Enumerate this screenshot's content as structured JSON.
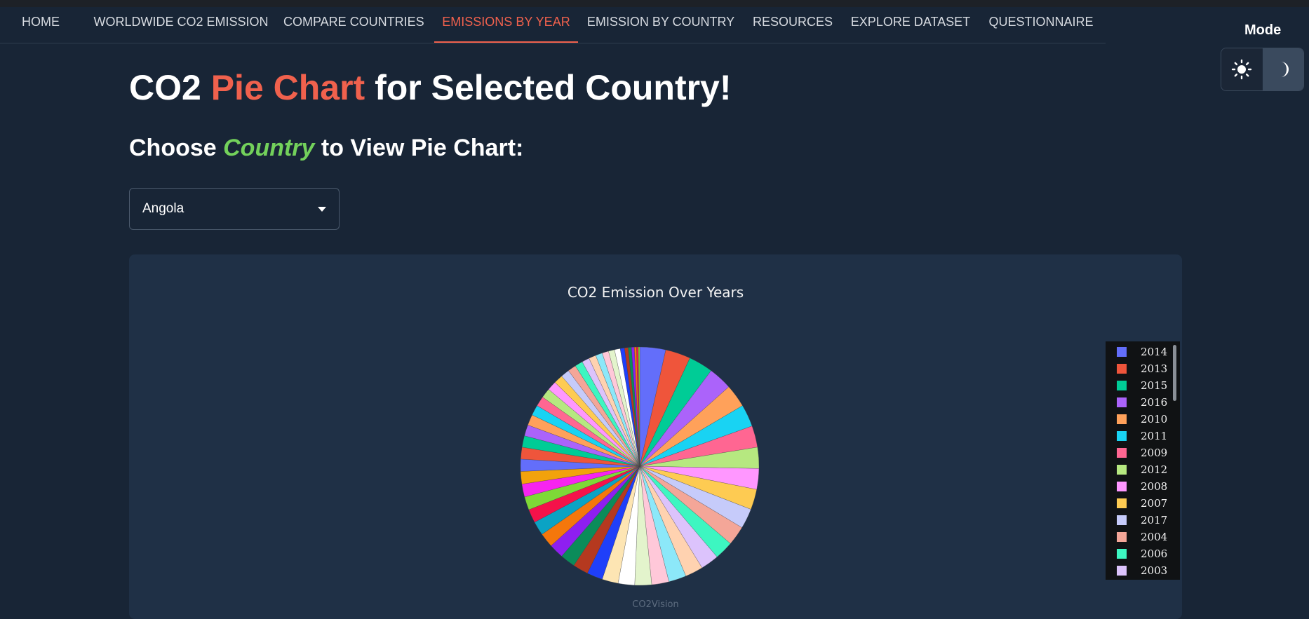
{
  "nav": {
    "items": [
      {
        "label": "HOME",
        "active": false
      },
      {
        "label": "WORLDWIDE CO2 EMISSION",
        "active": false
      },
      {
        "label": "COMPARE COUNTRIES",
        "active": false
      },
      {
        "label": "EMISSIONS BY YEAR",
        "active": true
      },
      {
        "label": "EMISSION BY COUNTRY",
        "active": false
      },
      {
        "label": "RESOURCES",
        "active": false
      },
      {
        "label": "EXPLORE DATASET",
        "active": false
      },
      {
        "label": "QUESTIONNAIRE",
        "active": false
      }
    ]
  },
  "mode": {
    "label": "Mode",
    "light_icon": "sun-icon",
    "dark_icon": "moon-icon",
    "selected": "dark"
  },
  "page": {
    "title_part1": "CO2 ",
    "title_accent": "Pie Chart",
    "title_part2": " for Selected Country!",
    "subtitle_part1": "Choose ",
    "subtitle_accent": "Country",
    "subtitle_part2": " to View Pie Chart:"
  },
  "select": {
    "value": "Angola"
  },
  "chart": {
    "title": "CO2 Emission Over Years",
    "watermark": "CO2Vision"
  },
  "colors": {
    "accent_red": "#f0614d",
    "accent_green": "#73d15b",
    "background": "#182536",
    "card": "#1f3046"
  },
  "chart_data": {
    "type": "pie",
    "title": "CO2 Emission Over Years",
    "legend_placement": "right",
    "legend_visible": [
      "2014",
      "2013",
      "2015",
      "2016",
      "2010",
      "2011",
      "2009",
      "2012",
      "2008",
      "2007",
      "2017",
      "2004",
      "2006",
      "2003"
    ],
    "slices": [
      {
        "label": "2014",
        "value": 3.6,
        "color": "#636efa"
      },
      {
        "label": "2013",
        "value": 3.5,
        "color": "#ef553b"
      },
      {
        "label": "2015",
        "value": 3.4,
        "color": "#00cc96"
      },
      {
        "label": "2016",
        "value": 3.3,
        "color": "#ab63fa"
      },
      {
        "label": "2010",
        "value": 3.2,
        "color": "#ffa15a"
      },
      {
        "label": "2011",
        "value": 3.1,
        "color": "#19d3f3"
      },
      {
        "label": "2009",
        "value": 3.0,
        "color": "#ff6692"
      },
      {
        "label": "2012",
        "value": 2.95,
        "color": "#b6e880"
      },
      {
        "label": "2008",
        "value": 2.9,
        "color": "#ff97ff"
      },
      {
        "label": "2007",
        "value": 2.85,
        "color": "#fecb52"
      },
      {
        "label": "2017",
        "value": 2.8,
        "color": "#c6cbfa"
      },
      {
        "label": "2004",
        "value": 2.7,
        "color": "#f4a698"
      },
      {
        "label": "2006",
        "value": 2.6,
        "color": "#3df6c1"
      },
      {
        "label": "2003",
        "value": 2.55,
        "color": "#dcc3fc"
      },
      {
        "label": "",
        "value": 2.5,
        "color": "#ffd2b0"
      },
      {
        "label": "",
        "value": 2.45,
        "color": "#8ce8f9"
      },
      {
        "label": "",
        "value": 2.4,
        "color": "#ffc8d9"
      },
      {
        "label": "",
        "value": 2.35,
        "color": "#e3f4cc"
      },
      {
        "label": "",
        "value": 2.3,
        "color": "#ffffff"
      },
      {
        "label": "",
        "value": 2.25,
        "color": "#fde5b3"
      },
      {
        "label": "",
        "value": 2.2,
        "color": "#1f3ffa"
      },
      {
        "label": "",
        "value": 2.15,
        "color": "#b5391f"
      },
      {
        "label": "",
        "value": 2.1,
        "color": "#0b8c5a"
      },
      {
        "label": "",
        "value": 2.05,
        "color": "#8e1ff0"
      },
      {
        "label": "",
        "value": 2.0,
        "color": "#f5770b"
      },
      {
        "label": "",
        "value": 1.95,
        "color": "#0ba3c4"
      },
      {
        "label": "",
        "value": 1.9,
        "color": "#f5124a"
      },
      {
        "label": "",
        "value": 1.85,
        "color": "#7ed937"
      },
      {
        "label": "",
        "value": 1.8,
        "color": "#f724f0"
      },
      {
        "label": "",
        "value": 1.75,
        "color": "#f2a20c"
      },
      {
        "label": "",
        "value": 1.7,
        "color": "#636efa"
      },
      {
        "label": "",
        "value": 1.65,
        "color": "#ef553b"
      },
      {
        "label": "",
        "value": 1.6,
        "color": "#00cc96"
      },
      {
        "label": "",
        "value": 1.55,
        "color": "#ab63fa"
      },
      {
        "label": "",
        "value": 1.5,
        "color": "#ffa15a"
      },
      {
        "label": "",
        "value": 1.45,
        "color": "#19d3f3"
      },
      {
        "label": "",
        "value": 1.4,
        "color": "#ff6692"
      },
      {
        "label": "",
        "value": 1.35,
        "color": "#b6e880"
      },
      {
        "label": "",
        "value": 1.3,
        "color": "#ff97ff"
      },
      {
        "label": "",
        "value": 1.25,
        "color": "#fecb52"
      },
      {
        "label": "",
        "value": 1.2,
        "color": "#c6cbfa"
      },
      {
        "label": "",
        "value": 1.15,
        "color": "#f4a698"
      },
      {
        "label": "",
        "value": 1.1,
        "color": "#3df6c1"
      },
      {
        "label": "",
        "value": 1.05,
        "color": "#dcc3fc"
      },
      {
        "label": "",
        "value": 1.0,
        "color": "#ffd2b0"
      },
      {
        "label": "",
        "value": 0.95,
        "color": "#8ce8f9"
      },
      {
        "label": "",
        "value": 0.9,
        "color": "#ffc8d9"
      },
      {
        "label": "",
        "value": 0.85,
        "color": "#e3f4cc"
      },
      {
        "label": "",
        "value": 0.8,
        "color": "#ffffff"
      },
      {
        "label": "",
        "value": 0.6,
        "color": "#1f3ffa"
      },
      {
        "label": "",
        "value": 0.5,
        "color": "#b5391f"
      },
      {
        "label": "",
        "value": 0.45,
        "color": "#0b8c5a"
      },
      {
        "label": "",
        "value": 0.4,
        "color": "#8e1ff0"
      },
      {
        "label": "",
        "value": 0.3,
        "color": "#f5770b"
      },
      {
        "label": "",
        "value": 0.25,
        "color": "#f5124a"
      },
      {
        "label": "",
        "value": 0.2,
        "color": "#7ed937"
      }
    ]
  }
}
